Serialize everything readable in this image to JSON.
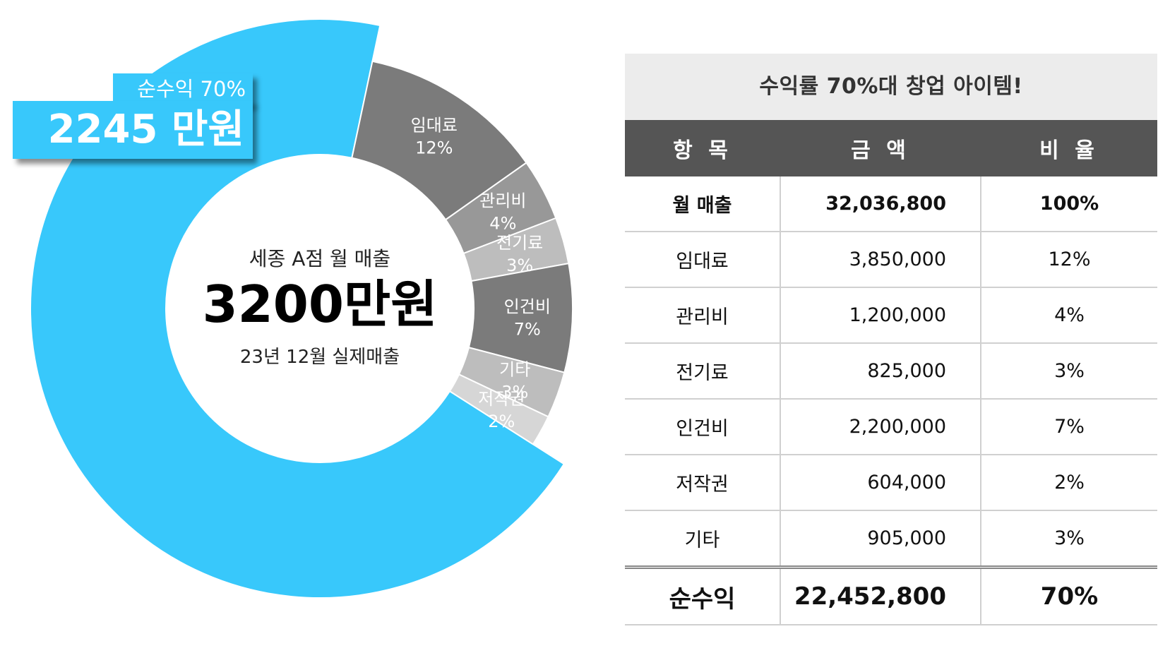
{
  "chart_data": {
    "type": "pie",
    "slices": [
      {
        "label": "순수익",
        "value": 70,
        "color": "#38c8fb"
      },
      {
        "label": "임대료",
        "value": 12,
        "color": "#7b7b7b"
      },
      {
        "label": "관리비",
        "value": 4,
        "color": "#989898"
      },
      {
        "label": "전기료",
        "value": 3,
        "color": "#bdbdbd"
      },
      {
        "label": "인건비",
        "value": 7,
        "color": "#7b7b7b"
      },
      {
        "label": "기타",
        "value": 3,
        "color": "#bdbdbd"
      },
      {
        "label": "저작권",
        "value": 2,
        "color": "#d6d6d6"
      }
    ],
    "center": {
      "title": "세종 A점 월 매출",
      "value": "3200만원",
      "note": "23년 12월 실제매출"
    },
    "callout": {
      "small": "순수익 70%",
      "big": "2245 만원"
    }
  },
  "table": {
    "title": "수익률 70%대 창업 아이템!",
    "headers": [
      "항 목",
      "금 액",
      "비 율"
    ],
    "rows": [
      {
        "item": "월 매출",
        "amount": "32,036,800",
        "ratio": "100%"
      },
      {
        "item": "임대료",
        "amount": "3,850,000",
        "ratio": "12%"
      },
      {
        "item": "관리비",
        "amount": "1,200,000",
        "ratio": "4%"
      },
      {
        "item": "전기료",
        "amount": "825,000",
        "ratio": "3%"
      },
      {
        "item": "인건비",
        "amount": "2,200,000",
        "ratio": "7%"
      },
      {
        "item": "저작권",
        "amount": "604,000",
        "ratio": "2%"
      },
      {
        "item": "기타",
        "amount": "905,000",
        "ratio": "3%"
      }
    ],
    "total": {
      "item": "순수익",
      "amount": "22,452,800",
      "ratio": "70%"
    }
  }
}
